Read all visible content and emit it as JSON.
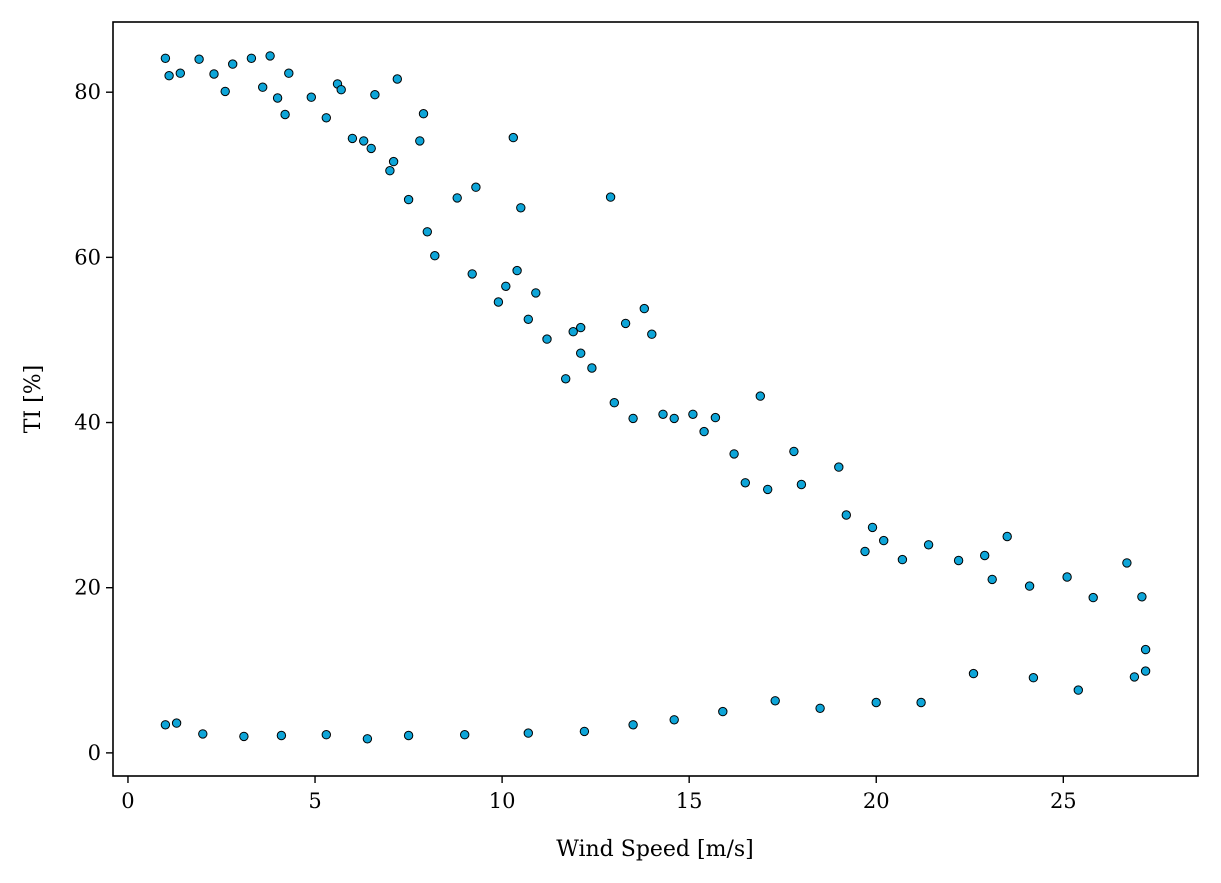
{
  "chart_data": {
    "type": "scatter",
    "title": "",
    "xlabel": "Wind Speed [m/s]",
    "ylabel": "TI [%]",
    "xlim": [
      -0.4,
      28.6
    ],
    "ylim": [
      -2.8,
      88.5
    ],
    "xticks": [
      0,
      5,
      10,
      15,
      20,
      25
    ],
    "yticks": [
      0,
      20,
      40,
      60,
      80
    ],
    "grid": false,
    "marker_fill": "#0ea5d8",
    "marker_edge": "#000000",
    "series": [
      {
        "points": [
          [
            1.0,
            3.4
          ],
          [
            1.0,
            84.1
          ],
          [
            1.1,
            82.0
          ],
          [
            1.4,
            82.3
          ],
          [
            1.9,
            84.0
          ],
          [
            2.3,
            82.2
          ],
          [
            2.8,
            83.4
          ],
          [
            3.3,
            84.1
          ],
          [
            3.8,
            84.4
          ],
          [
            4.3,
            82.3
          ],
          [
            2.6,
            80.1
          ],
          [
            3.6,
            80.6
          ],
          [
            4.0,
            79.3
          ],
          [
            4.9,
            79.4
          ],
          [
            5.6,
            81.0
          ],
          [
            5.7,
            80.3
          ],
          [
            6.6,
            79.7
          ],
          [
            7.2,
            81.6
          ],
          [
            4.2,
            77.3
          ],
          [
            5.3,
            76.9
          ],
          [
            6.3,
            74.1
          ],
          [
            6.0,
            74.4
          ],
          [
            6.5,
            73.2
          ],
          [
            7.1,
            71.6
          ],
          [
            7.9,
            77.4
          ],
          [
            7.8,
            74.1
          ],
          [
            7.0,
            70.5
          ],
          [
            7.5,
            67.0
          ],
          [
            8.0,
            63.1
          ],
          [
            8.2,
            60.2
          ],
          [
            8.8,
            67.2
          ],
          [
            9.3,
            68.5
          ],
          [
            9.2,
            58.0
          ],
          [
            10.3,
            74.5
          ],
          [
            10.5,
            66.0
          ],
          [
            10.4,
            58.4
          ],
          [
            9.9,
            54.6
          ],
          [
            10.1,
            56.5
          ],
          [
            10.9,
            55.7
          ],
          [
            10.7,
            52.5
          ],
          [
            11.2,
            50.1
          ],
          [
            12.1,
            51.5
          ],
          [
            11.9,
            51.0
          ],
          [
            12.9,
            67.3
          ],
          [
            13.8,
            53.8
          ],
          [
            13.3,
            52.0
          ],
          [
            14.0,
            50.7
          ],
          [
            12.1,
            48.4
          ],
          [
            11.7,
            45.3
          ],
          [
            12.4,
            46.6
          ],
          [
            13.0,
            42.4
          ],
          [
            13.5,
            40.5
          ],
          [
            14.3,
            41.0
          ],
          [
            15.1,
            41.0
          ],
          [
            15.7,
            40.6
          ],
          [
            14.6,
            40.5
          ],
          [
            16.9,
            43.2
          ],
          [
            15.4,
            38.9
          ],
          [
            16.2,
            36.2
          ],
          [
            17.8,
            36.5
          ],
          [
            19.0,
            34.6
          ],
          [
            18.0,
            32.5
          ],
          [
            17.1,
            31.9
          ],
          [
            16.5,
            32.7
          ],
          [
            19.2,
            28.8
          ],
          [
            19.9,
            27.3
          ],
          [
            19.7,
            24.4
          ],
          [
            20.2,
            25.7
          ],
          [
            21.4,
            25.2
          ],
          [
            20.7,
            23.4
          ],
          [
            22.2,
            23.3
          ],
          [
            22.9,
            23.9
          ],
          [
            23.5,
            26.2
          ],
          [
            23.1,
            21.0
          ],
          [
            24.1,
            20.2
          ],
          [
            25.1,
            21.3
          ],
          [
            25.8,
            18.8
          ],
          [
            26.7,
            23.0
          ],
          [
            27.1,
            18.9
          ],
          [
            27.2,
            12.5
          ],
          [
            27.2,
            9.9
          ],
          [
            26.9,
            9.2
          ],
          [
            25.4,
            7.6
          ],
          [
            24.2,
            9.1
          ],
          [
            22.6,
            9.6
          ],
          [
            21.2,
            6.1
          ],
          [
            20.0,
            6.1
          ],
          [
            18.5,
            5.4
          ],
          [
            17.3,
            6.3
          ],
          [
            15.9,
            5.0
          ],
          [
            14.6,
            4.0
          ],
          [
            13.5,
            3.4
          ],
          [
            12.2,
            2.6
          ],
          [
            10.7,
            2.4
          ],
          [
            9.0,
            2.2
          ],
          [
            7.5,
            2.1
          ],
          [
            6.4,
            1.7
          ],
          [
            5.3,
            2.2
          ],
          [
            4.1,
            2.1
          ],
          [
            3.1,
            2.0
          ],
          [
            2.0,
            2.3
          ],
          [
            1.3,
            3.6
          ]
        ]
      }
    ]
  }
}
